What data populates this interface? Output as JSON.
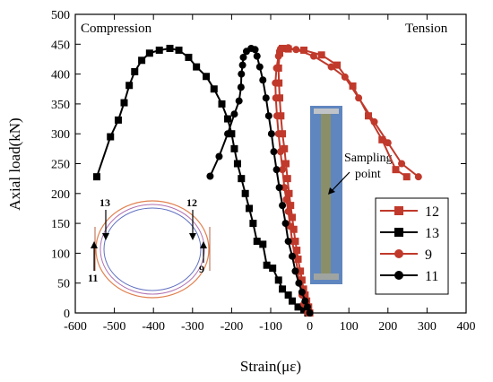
{
  "chart_data": {
    "type": "line",
    "xlabel": "Strain(με)",
    "ylabel": "Axial load(kN)",
    "xlim": [
      -600,
      400
    ],
    "ylim": [
      0,
      500
    ],
    "xticks": [
      -600,
      -500,
      -400,
      -300,
      -200,
      -100,
      0,
      100,
      200,
      300,
      400
    ],
    "yticks": [
      0,
      50,
      100,
      150,
      200,
      250,
      300,
      350,
      400,
      450,
      500
    ],
    "annotations": {
      "compression": "Compression",
      "tension": "Tension",
      "photo_label_line1": "Sampling",
      "photo_label_line2": "point"
    },
    "inset_labels": {
      "g13": "13",
      "g12": "12",
      "g11": "11",
      "g9": "9"
    },
    "legend_position": "lower-right",
    "series": [
      {
        "name": "12",
        "color": "#c0392b",
        "marker": "square",
        "filled": true,
        "points": [
          [
            0,
            0
          ],
          [
            -3,
            10
          ],
          [
            -8,
            20
          ],
          [
            -12,
            30
          ],
          [
            -16,
            40
          ],
          [
            -20,
            55
          ],
          [
            -24,
            70
          ],
          [
            -30,
            90
          ],
          [
            -33,
            105
          ],
          [
            -37,
            120
          ],
          [
            -41,
            140
          ],
          [
            -45,
            160
          ],
          [
            -49,
            180
          ],
          [
            -53,
            200
          ],
          [
            -57,
            225
          ],
          [
            -61,
            250
          ],
          [
            -65,
            275
          ],
          [
            -70,
            300
          ],
          [
            -74,
            330
          ],
          [
            -77,
            360
          ],
          [
            -79,
            385
          ],
          [
            -80,
            410
          ],
          [
            -77,
            435
          ],
          [
            -70,
            443
          ],
          [
            -55,
            442
          ],
          [
            -15,
            440
          ],
          [
            30,
            432
          ],
          [
            70,
            415
          ],
          [
            110,
            380
          ],
          [
            150,
            330
          ],
          [
            185,
            290
          ],
          [
            220,
            240
          ],
          [
            248,
            228
          ]
        ]
      },
      {
        "name": "13",
        "color": "#000000",
        "marker": "square",
        "filled": true,
        "points": [
          [
            -545,
            228
          ],
          [
            -510,
            295
          ],
          [
            -490,
            323
          ],
          [
            -475,
            352
          ],
          [
            -462,
            381
          ],
          [
            -448,
            404
          ],
          [
            -430,
            423
          ],
          [
            -410,
            435
          ],
          [
            -385,
            440
          ],
          [
            -358,
            443
          ],
          [
            -335,
            440
          ],
          [
            -310,
            428
          ],
          [
            -290,
            412
          ],
          [
            -265,
            396
          ],
          [
            -245,
            375
          ],
          [
            -225,
            350
          ],
          [
            -210,
            325
          ],
          [
            -200,
            300
          ],
          [
            -193,
            275
          ],
          [
            -185,
            250
          ],
          [
            -175,
            225
          ],
          [
            -165,
            200
          ],
          [
            -155,
            175
          ],
          [
            -145,
            150
          ],
          [
            -135,
            120
          ],
          [
            -120,
            115
          ],
          [
            -110,
            80
          ],
          [
            -95,
            75
          ],
          [
            -80,
            55
          ],
          [
            -70,
            40
          ],
          [
            -55,
            30
          ],
          [
            -45,
            20
          ],
          [
            -30,
            10
          ],
          [
            -15,
            5
          ],
          [
            -5,
            0
          ]
        ]
      },
      {
        "name": "9",
        "color": "#c0392b",
        "marker": "circle",
        "filled": true,
        "points": [
          [
            -5,
            0
          ],
          [
            -15,
            15
          ],
          [
            -20,
            30
          ],
          [
            -25,
            50
          ],
          [
            -30,
            70
          ],
          [
            -38,
            95
          ],
          [
            -45,
            120
          ],
          [
            -50,
            145
          ],
          [
            -55,
            170
          ],
          [
            -60,
            190
          ],
          [
            -65,
            210
          ],
          [
            -70,
            240
          ],
          [
            -75,
            270
          ],
          [
            -80,
            300
          ],
          [
            -84,
            330
          ],
          [
            -87,
            360
          ],
          [
            -88,
            385
          ],
          [
            -85,
            410
          ],
          [
            -80,
            430
          ],
          [
            -75,
            442
          ],
          [
            -55,
            444
          ],
          [
            -35,
            441
          ],
          [
            10,
            430
          ],
          [
            55,
            412
          ],
          [
            90,
            395
          ],
          [
            125,
            360
          ],
          [
            165,
            320
          ],
          [
            200,
            285
          ],
          [
            235,
            250
          ],
          [
            278,
            228
          ]
        ]
      },
      {
        "name": "11",
        "color": "#000000",
        "marker": "circle",
        "filled": true,
        "points": [
          [
            -255,
            229
          ],
          [
            -232,
            262
          ],
          [
            -210,
            300
          ],
          [
            -193,
            333
          ],
          [
            -181,
            355
          ],
          [
            -176,
            378
          ],
          [
            -175,
            400
          ],
          [
            -172,
            415
          ],
          [
            -170,
            428
          ],
          [
            -162,
            438
          ],
          [
            -150,
            443
          ],
          [
            -140,
            441
          ],
          [
            -135,
            430
          ],
          [
            -128,
            412
          ],
          [
            -120,
            390
          ],
          [
            -112,
            360
          ],
          [
            -105,
            330
          ],
          [
            -98,
            300
          ],
          [
            -92,
            270
          ],
          [
            -85,
            240
          ],
          [
            -78,
            210
          ],
          [
            -70,
            180
          ],
          [
            -62,
            150
          ],
          [
            -55,
            120
          ],
          [
            -45,
            95
          ],
          [
            -37,
            70
          ],
          [
            -28,
            50
          ],
          [
            -20,
            35
          ],
          [
            -12,
            20
          ],
          [
            -6,
            10
          ],
          [
            0,
            0
          ]
        ]
      }
    ]
  }
}
